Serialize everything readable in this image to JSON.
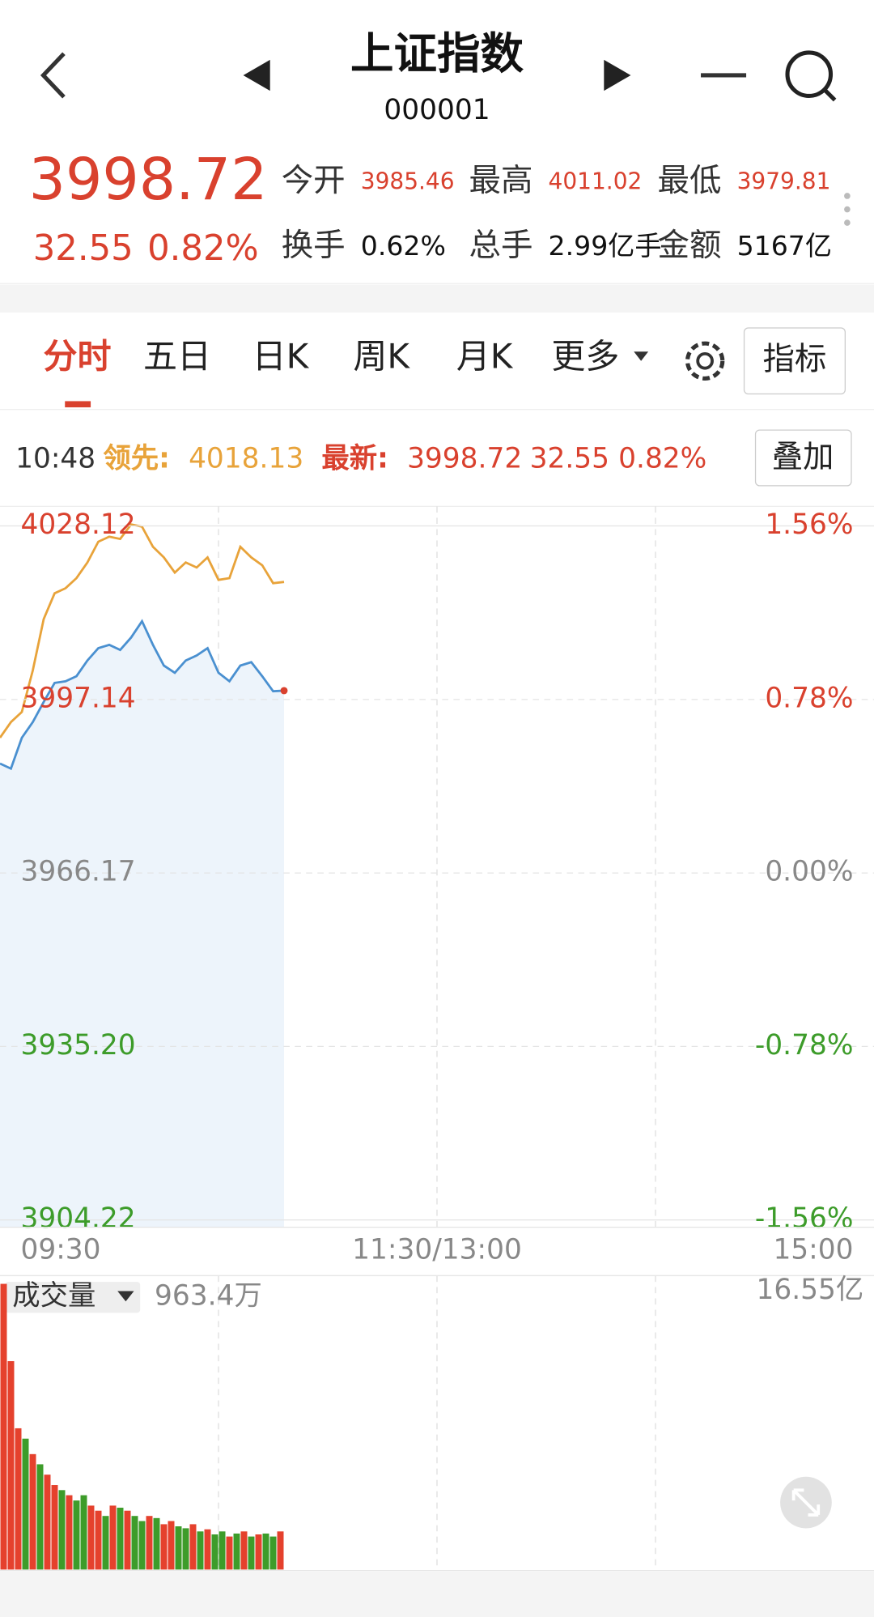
{
  "header": {
    "title": "上证指数",
    "code": "000001"
  },
  "quote": {
    "price": "3998.72",
    "change": "32.55",
    "change_pct": "0.82%",
    "stats": [
      {
        "label": "今开",
        "value": "3985.46"
      },
      {
        "label": "最高",
        "value": "4011.02"
      },
      {
        "label": "最低",
        "value": "3979.81"
      },
      {
        "label": "换手",
        "value": "0.62%"
      },
      {
        "label": "总手",
        "value": "2.99亿手"
      },
      {
        "label": "金额",
        "value": "5167亿"
      }
    ]
  },
  "tabs": [
    "分时",
    "五日",
    "日K",
    "周K",
    "月K",
    "更多"
  ],
  "indicator_button": "指标",
  "info_bar": {
    "time": "10:48",
    "leading_label": "领先:",
    "leading_value": "4018.13",
    "latest_label": "最新:",
    "latest_price": "3998.72",
    "latest_change": "32.55",
    "latest_pct": "0.82%",
    "overlay_button": "叠加"
  },
  "chart_data": [
    {
      "type": "line",
      "area": true,
      "x": [
        0,
        3,
        6,
        9,
        12,
        15,
        18,
        21,
        24,
        27,
        30,
        33,
        36,
        39,
        42,
        45,
        48,
        51,
        54,
        57,
        60,
        63,
        66,
        69,
        72,
        75,
        78
      ],
      "xlim": [
        0,
        240
      ],
      "xticks": [
        {
          "value": 0,
          "label": "09:30"
        },
        {
          "value": 120,
          "label": "11:30/13:00"
        },
        {
          "value": 240,
          "label": "15:00"
        }
      ],
      "ylim": [
        3904.22,
        4028.12
      ],
      "yticks": [
        3904.22,
        {
          "value": 3935.2,
          "label": "3935.20"
        },
        3966.17,
        3997.14,
        4028.12
      ],
      "y2lim": [
        -1.56,
        1.56
      ],
      "y2ticks": [
        {
          "value": -1.56,
          "label": "-1.56%"
        },
        {
          "value": -0.78,
          "label": "-0.78%"
        },
        {
          "value": 0,
          "label": "0.00%"
        },
        {
          "value": 0.78,
          "label": "0.78%"
        },
        {
          "value": 1.56,
          "label": "1.56%"
        }
      ],
      "series": [
        {
          "color": "#e8a33a",
          "values": [
            3990.3,
            3993.1,
            3994.9,
            4002.3,
            4011.5,
            4016.1,
            4017.0,
            4018.8,
            4021.6,
            4025.3,
            4026.2,
            4025.8,
            4028.4,
            4028.0,
            4024.4,
            4022.5,
            4019.8,
            4021.6,
            4020.7,
            4022.5,
            4018.5,
            4018.8,
            4024.4,
            4022.5,
            4021.1,
            4017.9,
            4018.13
          ]
        },
        {
          "color": "#4a90d0",
          "fill": "#edf4fb",
          "values": [
            3985.7,
            3984.8,
            3990.3,
            3993.1,
            3996.7,
            4000.1,
            4000.4,
            4001.3,
            4004.1,
            4006.3,
            4006.9,
            4006.0,
            4008.2,
            4011.1,
            4006.9,
            4003.2,
            4001.9,
            4004.1,
            4005.0,
            4006.3,
            4001.9,
            4000.4,
            4003.2,
            4003.8,
            4001.3,
            3998.6,
            3998.72
          ]
        }
      ]
    },
    {
      "type": "bar",
      "title": "成交量",
      "current_label": "963.4万",
      "x": [
        0,
        2,
        4,
        6,
        8,
        10,
        12,
        14,
        16,
        18,
        20,
        22,
        24,
        26,
        28,
        30,
        32,
        34,
        36,
        38,
        40,
        42,
        44,
        46,
        48,
        50,
        52,
        54,
        56,
        58,
        60,
        62,
        64,
        66,
        68,
        70,
        72,
        74,
        76
      ],
      "bar_width": 2,
      "xlim": [
        0,
        240
      ],
      "values": [
        16.26,
        11.86,
        8.04,
        7.45,
        6.57,
        5.99,
        5.4,
        4.81,
        4.52,
        4.23,
        3.93,
        4.23,
        3.64,
        3.35,
        3.05,
        3.64,
        3.52,
        3.35,
        3.05,
        2.76,
        3.05,
        2.93,
        2.58,
        2.76,
        2.46,
        2.35,
        2.58,
        2.17,
        2.29,
        2.0,
        2.17,
        1.88,
        2.05,
        2.17,
        1.88,
        2.0,
        2.05,
        1.88,
        2.17
      ],
      "colors": [
        "#e5412d",
        "#e5412d",
        "#e5412d",
        "#3d9c2a",
        "#e5412d",
        "#3d9c2a",
        "#e5412d",
        "#e5412d",
        "#3d9c2a",
        "#e5412d",
        "#3d9c2a",
        "#3d9c2a",
        "#e5412d",
        "#e5412d",
        "#3d9c2a",
        "#e5412d",
        "#3d9c2a",
        "#e5412d",
        "#3d9c2a",
        "#3d9c2a",
        "#e5412d",
        "#3d9c2a",
        "#e5412d",
        "#e5412d",
        "#3d9c2a",
        "#3d9c2a",
        "#e5412d",
        "#3d9c2a",
        "#e5412d",
        "#3d9c2a",
        "#3d9c2a",
        "#e5412d",
        "#3d9c2a",
        "#e5412d",
        "#3d9c2a",
        "#e5412d",
        "#3d9c2a",
        "#3d9c2a",
        "#e5412d"
      ],
      "ylim": [
        0,
        16.55
      ],
      "yticks": [
        {
          "value": 16.55,
          "label": "16.55亿"
        }
      ]
    }
  ]
}
